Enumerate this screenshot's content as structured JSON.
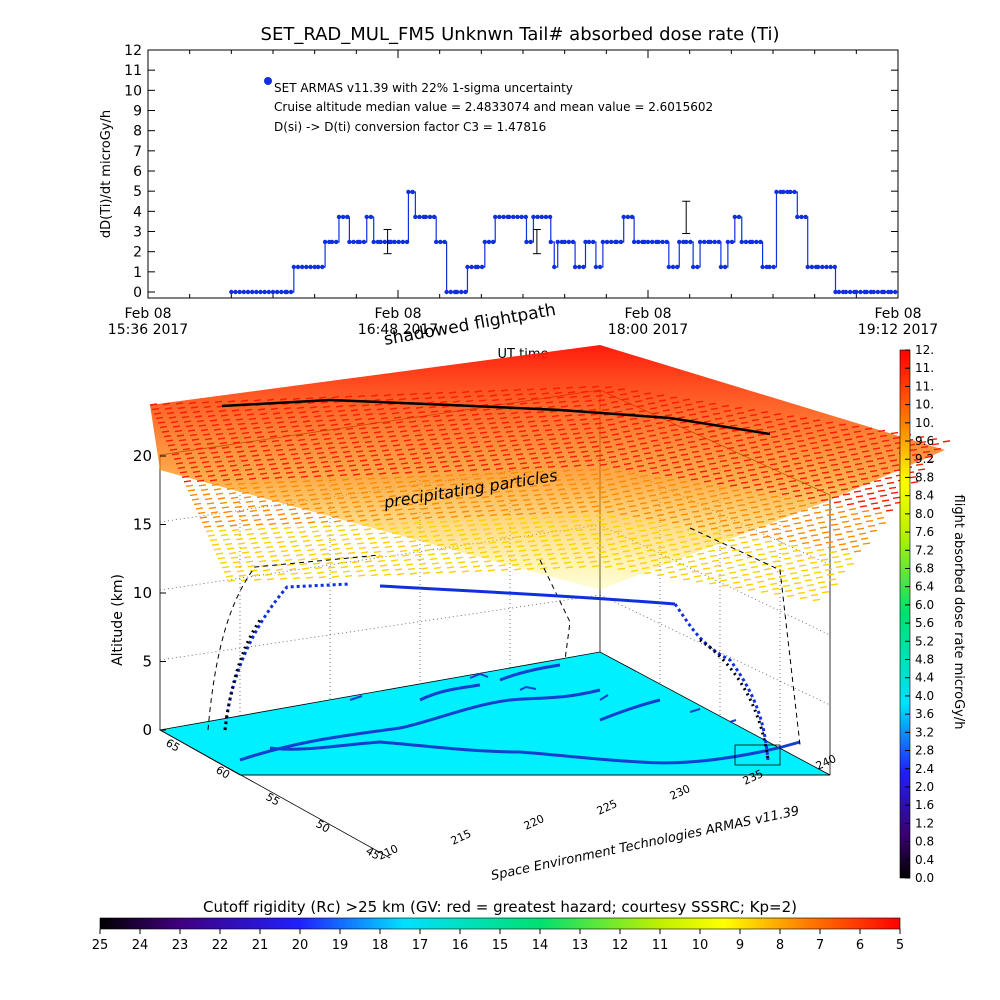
{
  "colors": {
    "series": "#1030e0",
    "map_fill": "#00f0ff",
    "coast": "#1040d0",
    "dose_high": "#ff0000",
    "dose_mid": "#ffb000",
    "dose_low": "#ffff00"
  },
  "top_chart": {
    "title": "SET_RAD_MUL_FM5 Unknwn Tail#  absorbed dose rate (Ti)",
    "ylabel": "dD(Ti)/dt microGy/h",
    "xlabel": "UT time",
    "legend": [
      "SET ARMAS v11.39 with 22% 1-sigma uncertainty",
      "Cruise altitude median value = 2.4833074 and mean value = 2.6015602",
      "D(si) -> D(ti) conversion factor C3 = 1.47816"
    ]
  },
  "chart_data": [
    {
      "type": "line",
      "title": "SET_RAD_MUL_FM5 Unknwn Tail#  absorbed dose rate (Ti)",
      "xlabel": "UT time",
      "ylabel": "dD(Ti)/dt microGy/h",
      "xlim": [
        0,
        216
      ],
      "ylim": [
        0,
        12
      ],
      "yticks": [
        "0",
        "1",
        "2",
        "3",
        "4",
        "5",
        "6",
        "7",
        "8",
        "9",
        "10",
        "11",
        "12"
      ],
      "xticks": [
        {
          "line1": "Feb 08",
          "line2": "15:36 2017",
          "t": 0
        },
        {
          "line1": "Feb 08",
          "line2": "16:48 2017",
          "t": 72
        },
        {
          "line1": "Feb 08",
          "line2": "18:00 2017",
          "t": 144
        },
        {
          "line1": "Feb 08",
          "line2": "19:12 2017",
          "t": 216
        }
      ],
      "series": [
        {
          "name": "SET ARMAS v11.39 with 22% 1-sigma uncertainty",
          "x": [
            24,
            40,
            42,
            49,
            51,
            53,
            55,
            58,
            61,
            63,
            65,
            67,
            70,
            71,
            75,
            77,
            80,
            83,
            86,
            89,
            92,
            95,
            97,
            100,
            104,
            109,
            111,
            116,
            117,
            118,
            120,
            123,
            126,
            127,
            129,
            131,
            135,
            137,
            140,
            143,
            144,
            147,
            150,
            153,
            155,
            157,
            159,
            162,
            165,
            167,
            169,
            171,
            174,
            177,
            179,
            181,
            183,
            185,
            187,
            190,
            193,
            198,
            199,
            201,
            204,
            207,
            209,
            212,
            214,
            216
          ],
          "y": [
            0,
            0,
            1.24,
            1.24,
            2.48,
            2.48,
            3.72,
            2.48,
            2.48,
            3.72,
            2.48,
            2.48,
            2.48,
            2.48,
            4.96,
            3.72,
            3.72,
            2.48,
            0,
            0,
            1.24,
            1.24,
            2.48,
            3.72,
            3.72,
            2.48,
            3.72,
            2.48,
            1.24,
            2.48,
            2.48,
            1.24,
            2.48,
            2.48,
            1.24,
            2.48,
            2.48,
            3.72,
            2.48,
            2.48,
            2.48,
            2.48,
            1.24,
            2.48,
            2.48,
            1.24,
            2.48,
            2.48,
            1.24,
            2.48,
            3.72,
            2.48,
            2.48,
            1.24,
            1.24,
            4.96,
            4.96,
            4.96,
            3.72,
            1.24,
            1.24,
            0,
            0,
            0,
            0,
            0,
            0,
            0,
            0,
            0
          ]
        }
      ],
      "error_bars": [
        {
          "x": 69,
          "low": 1.9,
          "high": 3.1
        },
        {
          "x": 112,
          "low": 1.9,
          "high": 3.1
        },
        {
          "x": 155,
          "low": 2.9,
          "high": 4.5
        }
      ]
    },
    {
      "type": "surface3d",
      "ylabel": "Altitude (km)",
      "zticks": [
        "0",
        "5",
        "10",
        "15",
        "20"
      ],
      "lon_ticks": [
        "210",
        "215",
        "220",
        "225",
        "230",
        "235",
        "240"
      ],
      "lat_ticks": [
        "45",
        "50",
        "55",
        "60",
        "65"
      ],
      "annotations": [
        "shadowed flightpath",
        "precipitating particles",
        "Space Environment Technologies ARMAS v11.39"
      ]
    },
    {
      "type": "colorbar",
      "label": "flight absorbed dose rate microGy/h",
      "ticks": [
        "0.0",
        "0.4",
        "0.8",
        "1.2",
        "1.6",
        "2.0",
        "2.4",
        "2.8",
        "3.2",
        "3.6",
        "4.0",
        "4.4",
        "4.8",
        "5.2",
        "5.6",
        "6.0",
        "6.4",
        "6.8",
        "7.2",
        "7.6",
        "8.0",
        "8.4",
        "8.8",
        "9.2",
        "9.6",
        "10.",
        "10.",
        "11.",
        "11.",
        "12."
      ]
    },
    {
      "type": "colorbar",
      "label": "Cutoff rigidity (Rc) >25 km (GV: red = greatest hazard; courtesy SSSRC; Kp=2)",
      "ticks": [
        "25",
        "24",
        "23",
        "22",
        "21",
        "20",
        "19",
        "18",
        "17",
        "16",
        "15",
        "14",
        "13",
        "12",
        "11",
        "10",
        "9",
        "8",
        "7",
        "6",
        "5"
      ]
    }
  ]
}
